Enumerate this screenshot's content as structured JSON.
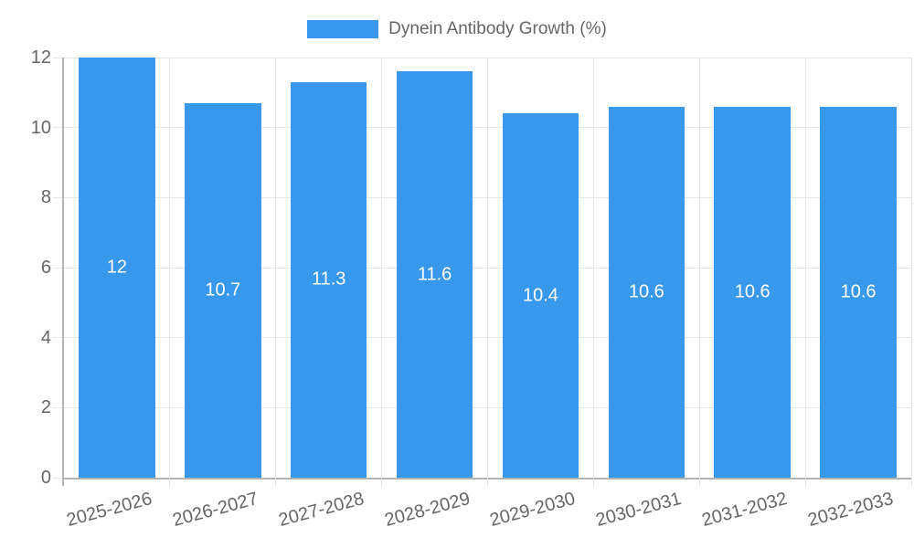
{
  "chart_data": {
    "type": "bar",
    "title": "Dynein Antibody Growth (%)",
    "legend": {
      "label": "Dynein Antibody Growth (%)",
      "position": "top"
    },
    "categories": [
      "2025-2026",
      "2026-2027",
      "2027-2028",
      "2028-2029",
      "2029-2030",
      "2030-2031",
      "2031-2032",
      "2032-2033"
    ],
    "values": [
      12,
      10.7,
      11.3,
      11.6,
      10.4,
      10.6,
      10.6,
      10.6
    ],
    "value_labels": [
      "12",
      "10.7",
      "11.3",
      "11.6",
      "10.4",
      "10.6",
      "10.6",
      "10.6"
    ],
    "xlabel": "",
    "ylabel": "",
    "ylim": [
      0,
      12
    ],
    "yticks": [
      0,
      2,
      4,
      6,
      8,
      10,
      12
    ],
    "grid": true,
    "x_label_rotation_deg": -15,
    "colors": {
      "bar": "#3898ec",
      "grid": "#e6e6e6",
      "axis": "#b3b3b3",
      "tick_text": "#666666",
      "value_text": "#ffffff"
    }
  }
}
